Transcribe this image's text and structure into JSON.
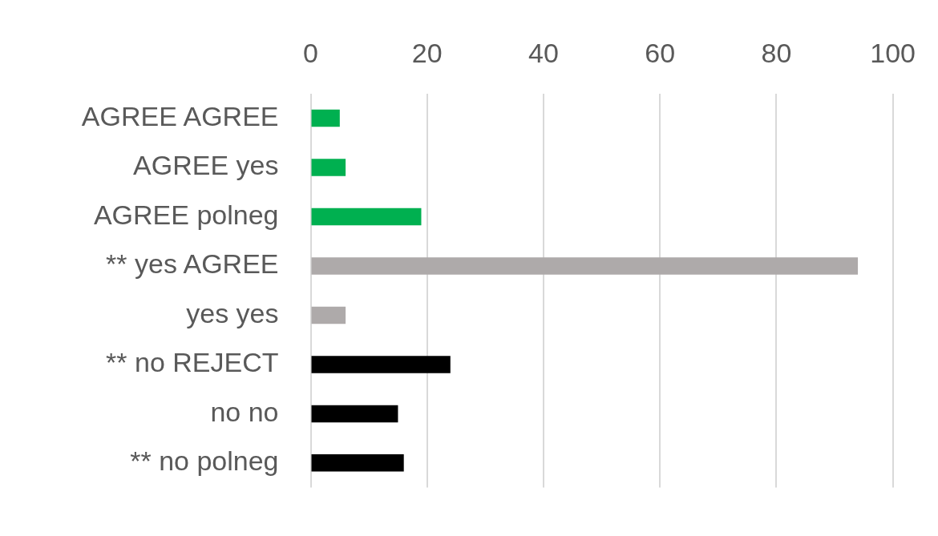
{
  "chart_data": {
    "type": "bar",
    "orientation": "horizontal",
    "categories": [
      "AGREE AGREE",
      "AGREE yes",
      "AGREE polneg",
      "** yes AGREE",
      "yes yes",
      "** no REJECT",
      "no no",
      "** no polneg"
    ],
    "values": [
      5,
      6,
      19,
      94,
      6,
      24,
      15,
      16
    ],
    "colors": [
      "#00b050",
      "#00b050",
      "#00b050",
      "#aeaaaa",
      "#aeaaaa",
      "#000000",
      "#000000",
      "#000000"
    ],
    "xlim": [
      0,
      100
    ],
    "xticks": [
      0,
      20,
      40,
      60,
      80,
      100
    ],
    "grid": "x",
    "legend": false
  }
}
